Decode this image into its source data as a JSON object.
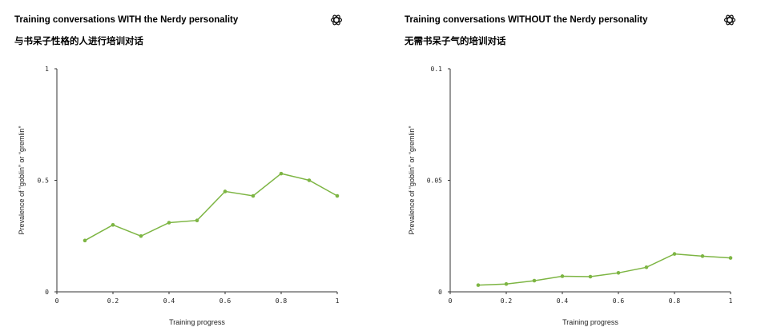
{
  "brand": {
    "logo_icon": "openai-logo-icon"
  },
  "colors": {
    "series": "#7db543",
    "axis": "#333333"
  },
  "chart_data": [
    {
      "type": "line",
      "title": "Training conversations WITH the Nerdy personality",
      "subtitle": "与书呆子性格的人进行培训对话",
      "xlabel": "Training progress",
      "ylabel": "Prevalence of “goblin” or “gremlin”",
      "xlim": [
        0,
        1
      ],
      "ylim": [
        0,
        1
      ],
      "x_ticks": [
        "0",
        "0.2",
        "0.4",
        "0.6",
        "0.8",
        "1"
      ],
      "y_ticks": [
        "0",
        "0.5",
        "1"
      ],
      "x_tick_values": [
        0,
        0.2,
        0.4,
        0.6,
        0.8,
        1
      ],
      "y_tick_values": [
        0,
        0.5,
        1
      ],
      "grid": false,
      "x": [
        0.1,
        0.2,
        0.3,
        0.4,
        0.5,
        0.6,
        0.7,
        0.8,
        0.9,
        1.0
      ],
      "y": [
        0.23,
        0.3,
        0.25,
        0.31,
        0.32,
        0.45,
        0.43,
        0.53,
        0.5,
        0.43
      ]
    },
    {
      "type": "line",
      "title": "Training conversations WITHOUT the Nerdy personality",
      "subtitle": "无需书呆子气的培训对话",
      "xlabel": "Training progress",
      "ylabel": "Prevalence of “goblin” or “gremlin”",
      "xlim": [
        0,
        1
      ],
      "ylim": [
        0,
        0.1
      ],
      "x_ticks": [
        "0",
        "0.2",
        "0.4",
        "0.6",
        "0.8",
        "1"
      ],
      "y_ticks": [
        "0",
        "0.05",
        "0.1"
      ],
      "x_tick_values": [
        0,
        0.2,
        0.4,
        0.6,
        0.8,
        1
      ],
      "y_tick_values": [
        0,
        0.05,
        0.1
      ],
      "grid": false,
      "x": [
        0.1,
        0.2,
        0.3,
        0.4,
        0.5,
        0.6,
        0.7,
        0.8,
        0.9,
        1.0
      ],
      "y": [
        0.003,
        0.0035,
        0.005,
        0.007,
        0.0068,
        0.0085,
        0.011,
        0.017,
        0.016,
        0.0152
      ]
    }
  ]
}
